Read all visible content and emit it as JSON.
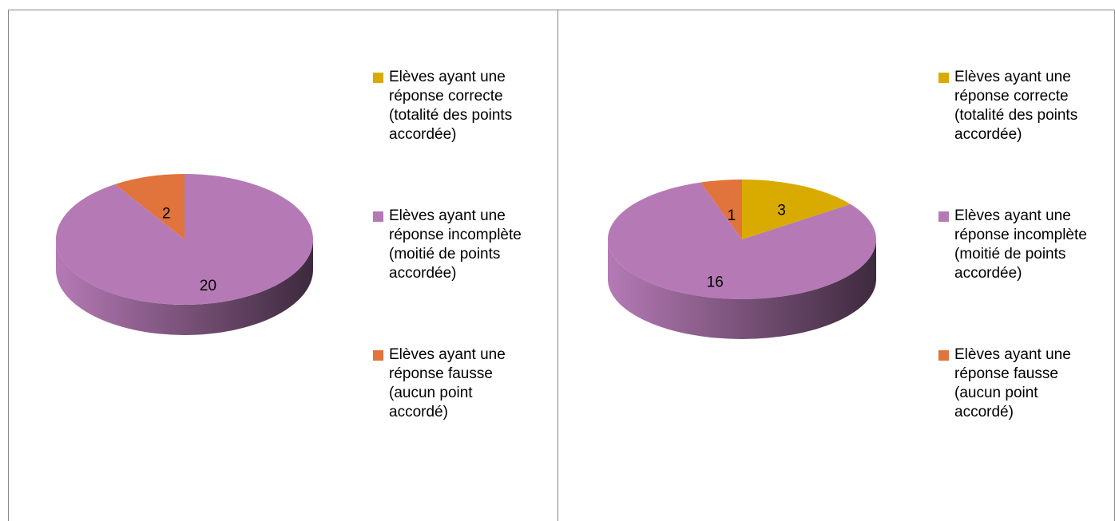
{
  "chart_data": [
    {
      "type": "pie",
      "categories": [
        "Elèves ayant une réponse correcte (totalité des points accordée)",
        "Elèves ayant une réponse incomplète (moitié de points accordée)",
        "Elèves ayant une réponse fausse (aucun point accordé)"
      ],
      "values": [
        0,
        20,
        2
      ],
      "colors": [
        "#D9AB00",
        "#B57AB5",
        "#E1733C"
      ]
    },
    {
      "type": "pie",
      "categories": [
        "Elèves ayant une réponse correcte (totalité des points accordée)",
        "Elèves ayant une réponse incomplète (moitié de points accordée)",
        "Elèves ayant une réponse fausse (aucun point accordé)"
      ],
      "values": [
        3,
        16,
        1
      ],
      "colors": [
        "#D9AB00",
        "#B57AB5",
        "#E1733C"
      ]
    }
  ]
}
